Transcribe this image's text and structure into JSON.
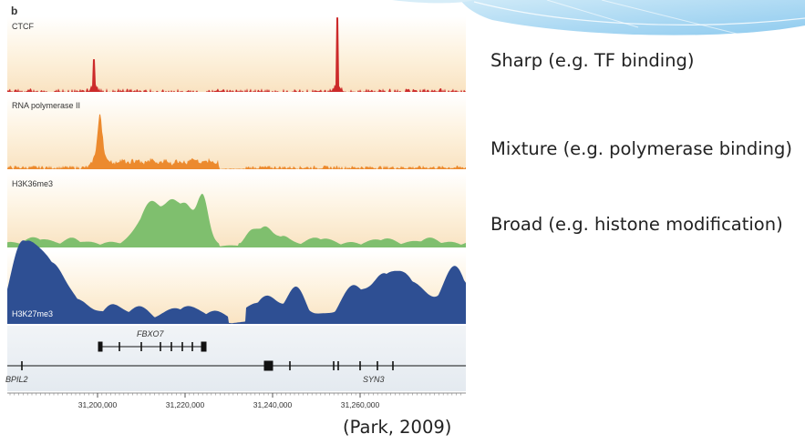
{
  "figure": {
    "panel_label": "b",
    "tracks": [
      {
        "label": "CTCF",
        "color": "#cc2a2a",
        "profile": "sharp"
      },
      {
        "label": "RNA polymerase II",
        "color": "#ec8a2e",
        "profile": "mixture"
      },
      {
        "label": "H3K36me3",
        "color": "#7fbf6e",
        "profile": "broad"
      },
      {
        "label": "H3K27me3",
        "color": "#2e4f93",
        "profile": "broad"
      }
    ],
    "genes": {
      "top_gene": "FBXO7",
      "left_gene": "BPIL2",
      "right_gene": "SYN3"
    },
    "axis_ticks": [
      "31,200,000",
      "31,220,000",
      "31,240,000",
      "31,260,000"
    ],
    "colors": {
      "track_background": "#fdf1dc",
      "gene_track_background": "#e9eef2"
    }
  },
  "annotations": {
    "sharp": "Sharp (e.g. TF binding)",
    "mixture": "Mixture (e.g. polymerase binding)",
    "broad": "Broad (e.g. histone modification)"
  },
  "citation": "(Park, 2009)"
}
